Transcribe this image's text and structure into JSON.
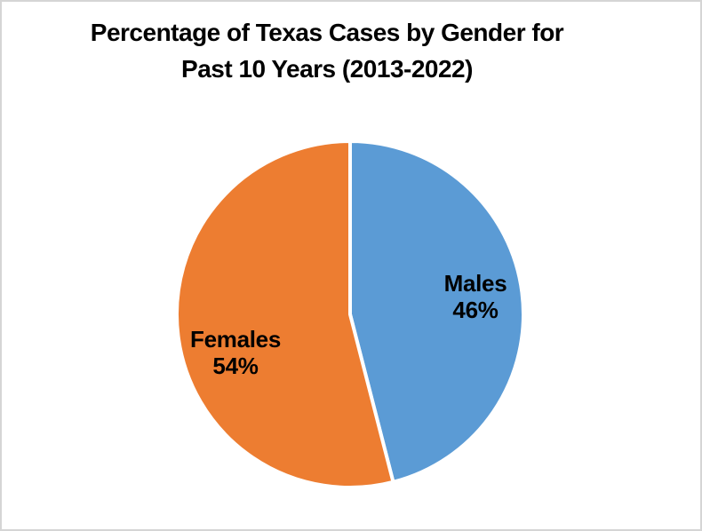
{
  "chart_data": {
    "type": "pie",
    "title": "Percentage of Texas Cases by Gender for Past 10 Years (2013-2022)",
    "title_lines": [
      "Percentage of Texas Cases by Gender for",
      "Past 10 Years (2013-2022)"
    ],
    "slices": [
      {
        "label": "Males",
        "value": 46,
        "display": "46%",
        "color": "#5B9BD5"
      },
      {
        "label": "Females",
        "value": 54,
        "display": "54%",
        "color": "#ED7D31"
      }
    ],
    "start_angle_deg": 0,
    "direction": "clockwise",
    "legend": "none",
    "labels": "category name and percent shown inside slices"
  },
  "colors": {
    "male_blue": "#5B9BD5",
    "female_orange": "#ED7D31",
    "background": "#FFFFFF",
    "slice_gap": "#FFFFFF",
    "page_border": "#D5D5D5",
    "text": "#000000"
  }
}
